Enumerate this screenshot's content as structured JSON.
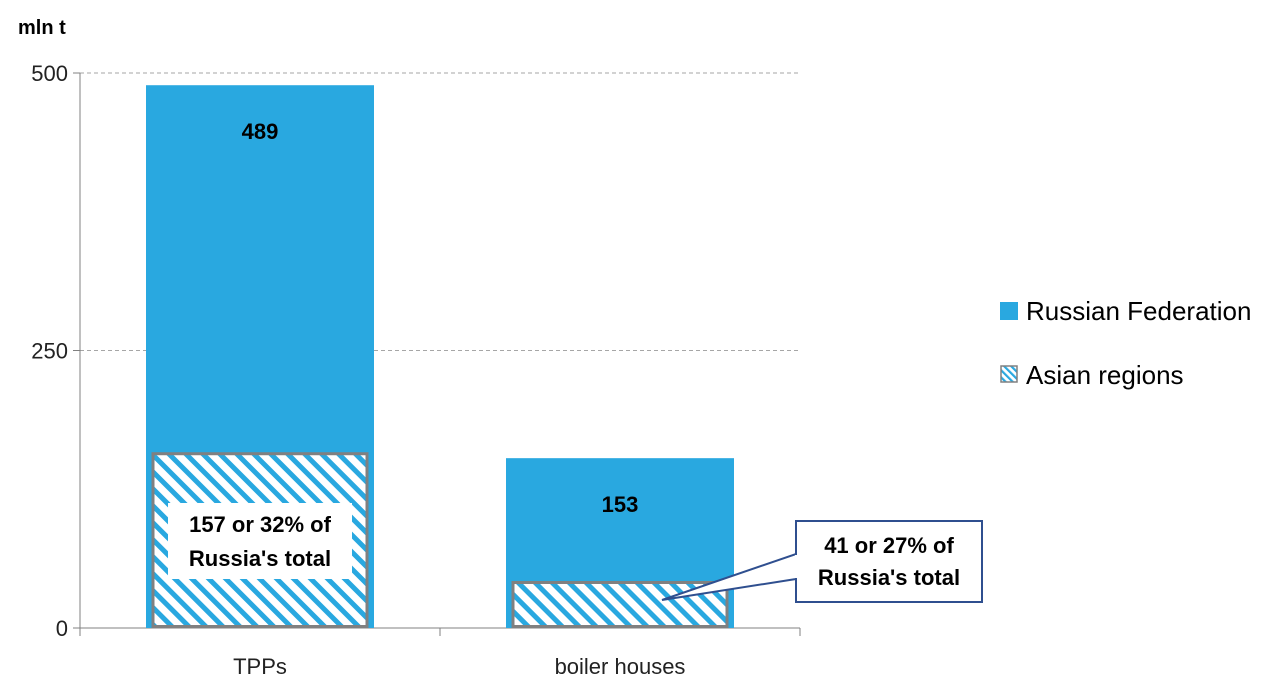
{
  "chart_data": {
    "type": "bar",
    "unit_label": "mln t",
    "categories": [
      "TPPs",
      "boiler houses"
    ],
    "series": [
      {
        "name": "Russian Federation",
        "values": [
          489,
          153
        ]
      },
      {
        "name": "Asian regions",
        "values": [
          157,
          41
        ]
      }
    ],
    "data_labels": [
      "489",
      "153"
    ],
    "annotations": [
      {
        "line1": "157 or 32% of",
        "line2": "Russia's total"
      },
      {
        "line1": "41 or 27% of",
        "line2": "Russia's total"
      }
    ],
    "yticks": [
      "0",
      "250",
      "500"
    ],
    "ylim": [
      0,
      500
    ],
    "grid": true,
    "legend_position": "right",
    "colors": {
      "russian_federation": "#29a8e0",
      "asian_regions_hatch": "#29a8e0",
      "asian_regions_border": "#808080",
      "callout_border": "#2f4f8f",
      "grid": "#a6a6a6",
      "axis": "#808080"
    }
  }
}
